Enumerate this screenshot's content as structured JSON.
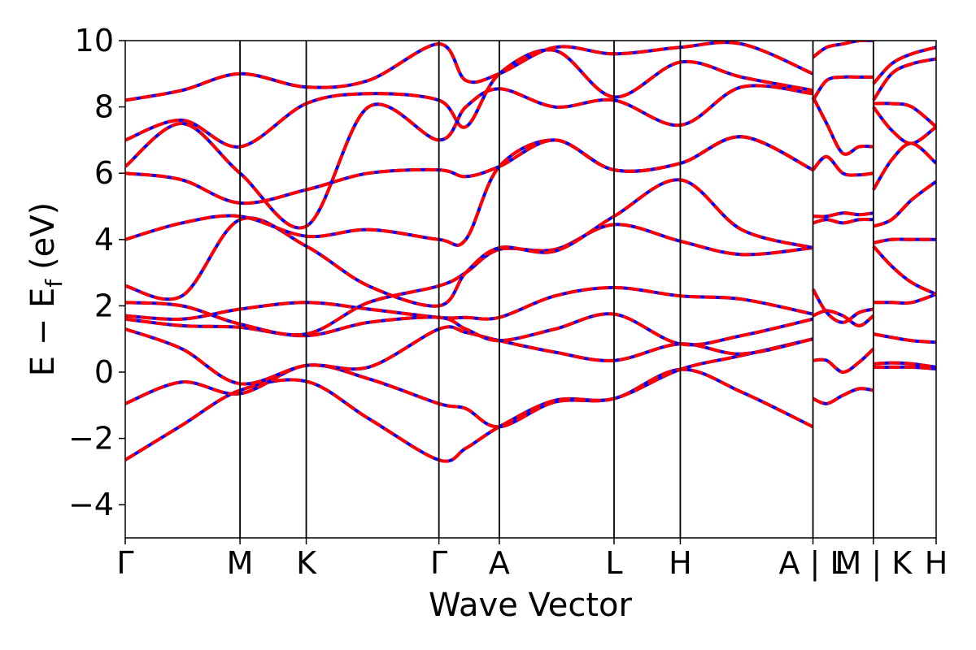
{
  "chart_data": {
    "type": "line",
    "xlabel": "Wave Vector",
    "ylabel_main": "E − E",
    "ylabel_sub": "f",
    "ylabel_unit": "(eV)",
    "ylim": [
      -5,
      10
    ],
    "yticks": [
      {
        "value": 10,
        "label": "10"
      },
      {
        "value": 8,
        "label": "8"
      },
      {
        "value": 6,
        "label": "6"
      },
      {
        "value": 4,
        "label": "4"
      },
      {
        "value": 2,
        "label": "2"
      },
      {
        "value": 0,
        "label": "0"
      },
      {
        "value": -2,
        "label": "−2"
      },
      {
        "value": -4,
        "label": "−4"
      }
    ],
    "xlim": [
      0,
      1
    ],
    "kpoints": [
      {
        "x": 0.0,
        "label": "Γ"
      },
      {
        "x": 0.1415,
        "label": "M"
      },
      {
        "x": 0.2232,
        "label": "K"
      },
      {
        "x": 0.3868,
        "label": "Γ"
      },
      {
        "x": 0.4613,
        "label": "A"
      },
      {
        "x": 0.6028,
        "label": "L"
      },
      {
        "x": 0.6845,
        "label": "H"
      },
      {
        "x": 0.8481,
        "label": "A | L"
      },
      {
        "x": 0.9226,
        "label": "M | K"
      },
      {
        "x": 1.0,
        "label": "H"
      }
    ],
    "series_colors": {
      "primary": "#ff0000",
      "secondary": "#0000ff"
    },
    "bands": [
      {
        "x": [
          0,
          0.07,
          0.1415,
          0.2232,
          0.3,
          0.3868,
          0.42,
          0.4613,
          0.53,
          0.6028,
          0.6845,
          0.76,
          0.8481
        ],
        "y": [
          -2.65,
          -1.6,
          -0.55,
          -0.28,
          -1.4,
          -2.65,
          -2.3,
          -1.65,
          -0.85,
          -0.8,
          0.08,
          -0.6,
          -1.65
        ]
      },
      {
        "x": [
          0,
          0.07,
          0.1415,
          0.2232,
          0.3,
          0.3868,
          0.42,
          0.4613,
          0.53,
          0.6028,
          0.6845,
          0.76,
          0.8481
        ],
        "y": [
          -0.95,
          -0.3,
          -0.65,
          0.2,
          -0.2,
          -0.95,
          -1.1,
          -1.65,
          -0.9,
          -0.8,
          0.08,
          0.5,
          1.0
        ]
      },
      {
        "x": [
          0,
          0.07,
          0.1415,
          0.2232,
          0.3,
          0.3868,
          0.42,
          0.4613,
          0.53,
          0.6028,
          0.6845,
          0.76,
          0.8481
        ],
        "y": [
          1.3,
          0.7,
          -0.35,
          0.2,
          0.15,
          1.3,
          1.2,
          0.95,
          0.6,
          0.35,
          0.85,
          0.55,
          1.0
        ]
      },
      {
        "x": [
          0,
          0.07,
          0.1415,
          0.2232,
          0.3,
          0.3868,
          0.42,
          0.4613,
          0.53,
          0.6028,
          0.6845,
          0.76,
          0.8481
        ],
        "y": [
          1.6,
          1.4,
          1.35,
          1.1,
          1.5,
          1.65,
          1.3,
          0.95,
          1.3,
          1.75,
          0.85,
          1.1,
          1.6
        ]
      },
      {
        "x": [
          0,
          0.07,
          0.1415,
          0.2232,
          0.3,
          0.3868,
          0.42,
          0.4613,
          0.53,
          0.6028,
          0.6845,
          0.76,
          0.8481
        ],
        "y": [
          1.7,
          1.6,
          1.9,
          2.1,
          1.9,
          1.65,
          1.65,
          1.65,
          2.3,
          2.55,
          2.3,
          2.2,
          1.75
        ]
      },
      {
        "x": [
          0,
          0.07,
          0.1415,
          0.2232,
          0.3,
          0.3868,
          0.42,
          0.4613,
          0.53,
          0.6028,
          0.6845,
          0.76,
          0.8481
        ],
        "y": [
          2.1,
          2.0,
          1.45,
          1.15,
          2.1,
          2.6,
          3.0,
          3.7,
          3.7,
          4.45,
          3.95,
          3.55,
          3.75
        ]
      },
      {
        "x": [
          0,
          0.07,
          0.1415,
          0.2232,
          0.3,
          0.3868,
          0.42,
          0.4613,
          0.53,
          0.6028,
          0.6845,
          0.76,
          0.8481
        ],
        "y": [
          2.6,
          2.3,
          4.6,
          3.8,
          2.6,
          2.0,
          3.0,
          3.75,
          3.65,
          4.7,
          5.8,
          4.3,
          3.75
        ]
      },
      {
        "x": [
          0,
          0.07,
          0.1415,
          0.2232,
          0.3,
          0.3868,
          0.42,
          0.4613,
          0.53,
          0.6028,
          0.6845,
          0.76,
          0.8481
        ],
        "y": [
          4.0,
          4.5,
          4.7,
          4.1,
          4.3,
          4.0,
          4.0,
          6.2,
          7.0,
          6.1,
          6.3,
          7.1,
          6.1
        ]
      },
      {
        "x": [
          0,
          0.07,
          0.1415,
          0.2232,
          0.3,
          0.3868,
          0.42,
          0.4613,
          0.53,
          0.6028,
          0.6845,
          0.76,
          0.8481
        ],
        "y": [
          6.0,
          5.8,
          5.1,
          5.5,
          6.0,
          6.1,
          5.9,
          6.2,
          7.0,
          6.1,
          6.3,
          7.1,
          6.1
        ]
      },
      {
        "x": [
          0,
          0.07,
          0.1415,
          0.2232,
          0.3,
          0.3868,
          0.42,
          0.4613,
          0.53,
          0.6028,
          0.6845,
          0.76,
          0.8481
        ],
        "y": [
          6.2,
          7.5,
          6.0,
          4.4,
          8.0,
          7.0,
          8.0,
          8.55,
          8.0,
          8.2,
          7.45,
          8.6,
          8.4
        ]
      },
      {
        "x": [
          0,
          0.07,
          0.1415,
          0.2232,
          0.3,
          0.3868,
          0.42,
          0.4613,
          0.53,
          0.6028,
          0.6845,
          0.76,
          0.8481
        ],
        "y": [
          7.0,
          7.6,
          6.8,
          8.1,
          8.4,
          8.2,
          7.4,
          9.0,
          9.7,
          8.3,
          9.35,
          8.9,
          8.5
        ]
      },
      {
        "x": [
          0,
          0.07,
          0.1415,
          0.2232,
          0.3,
          0.3868,
          0.42,
          0.4613,
          0.53,
          0.6028,
          0.6845,
          0.76,
          0.8481
        ],
        "y": [
          8.2,
          8.5,
          9.0,
          8.6,
          8.8,
          9.9,
          8.8,
          9.0,
          9.8,
          9.6,
          9.8,
          9.9,
          9.0
        ]
      },
      {
        "x": [
          0.8481,
          0.865,
          0.885,
          0.905,
          0.9226
        ],
        "y": [
          -0.8,
          -0.95,
          -0.7,
          -0.5,
          -0.55
        ]
      },
      {
        "x": [
          0.8481,
          0.865,
          0.885,
          0.905,
          0.9226
        ],
        "y": [
          0.35,
          0.35,
          0.0,
          0.3,
          0.7
        ]
      },
      {
        "x": [
          0.8481,
          0.865,
          0.885,
          0.905,
          0.9226
        ],
        "y": [
          1.7,
          1.85,
          1.7,
          1.4,
          1.7
        ]
      },
      {
        "x": [
          0.8481,
          0.865,
          0.885,
          0.905,
          0.9226
        ],
        "y": [
          2.5,
          1.8,
          1.5,
          1.8,
          1.9
        ]
      },
      {
        "x": [
          0.8481,
          0.865,
          0.885,
          0.905,
          0.9226
        ],
        "y": [
          4.5,
          4.6,
          4.5,
          4.6,
          4.6
        ]
      },
      {
        "x": [
          0.8481,
          0.865,
          0.885,
          0.905,
          0.9226
        ],
        "y": [
          4.7,
          4.7,
          4.8,
          4.75,
          4.8
        ]
      },
      {
        "x": [
          0.8481,
          0.865,
          0.885,
          0.905,
          0.9226
        ],
        "y": [
          6.1,
          6.5,
          6.0,
          5.95,
          6.0
        ]
      },
      {
        "x": [
          0.8481,
          0.865,
          0.885,
          0.905,
          0.9226
        ],
        "y": [
          8.3,
          7.5,
          6.6,
          6.8,
          6.8
        ]
      },
      {
        "x": [
          0.8481,
          0.865,
          0.885,
          0.905,
          0.9226
        ],
        "y": [
          8.2,
          8.8,
          8.9,
          8.9,
          8.9
        ]
      },
      {
        "x": [
          0.8481,
          0.865,
          0.885,
          0.905,
          0.9226
        ],
        "y": [
          9.5,
          9.8,
          9.9,
          10.0,
          10.0
        ]
      },
      {
        "x": [
          0.9226,
          0.945,
          0.97,
          1.0
        ],
        "y": [
          0.15,
          0.15,
          0.15,
          0.1
        ]
      },
      {
        "x": [
          0.9226,
          0.945,
          0.97,
          1.0
        ],
        "y": [
          0.25,
          0.28,
          0.25,
          0.15
        ]
      },
      {
        "x": [
          0.9226,
          0.945,
          0.97,
          1.0
        ],
        "y": [
          1.15,
          1.05,
          0.95,
          0.9
        ]
      },
      {
        "x": [
          0.9226,
          0.945,
          0.97,
          1.0
        ],
        "y": [
          2.1,
          2.1,
          2.1,
          2.35
        ]
      },
      {
        "x": [
          0.9226,
          0.945,
          0.97,
          1.0
        ],
        "y": [
          3.8,
          3.2,
          2.7,
          2.35
        ]
      },
      {
        "x": [
          0.9226,
          0.945,
          0.97,
          1.0
        ],
        "y": [
          3.9,
          4.0,
          4.0,
          4.0
        ]
      },
      {
        "x": [
          0.9226,
          0.945,
          0.97,
          1.0
        ],
        "y": [
          4.4,
          4.6,
          5.2,
          5.75
        ]
      },
      {
        "x": [
          0.9226,
          0.945,
          0.97,
          1.0
        ],
        "y": [
          5.5,
          6.4,
          6.9,
          6.3
        ]
      },
      {
        "x": [
          0.9226,
          0.945,
          0.97,
          1.0
        ],
        "y": [
          8.0,
          7.3,
          6.9,
          7.4
        ]
      },
      {
        "x": [
          0.9226,
          0.945,
          0.97,
          1.0
        ],
        "y": [
          8.1,
          8.1,
          8.0,
          7.4
        ]
      },
      {
        "x": [
          0.9226,
          0.945,
          0.97,
          1.0
        ],
        "y": [
          8.2,
          9.0,
          9.3,
          9.45
        ]
      },
      {
        "x": [
          0.9226,
          0.945,
          0.97,
          1.0
        ],
        "y": [
          8.7,
          9.3,
          9.6,
          9.8
        ]
      }
    ]
  }
}
